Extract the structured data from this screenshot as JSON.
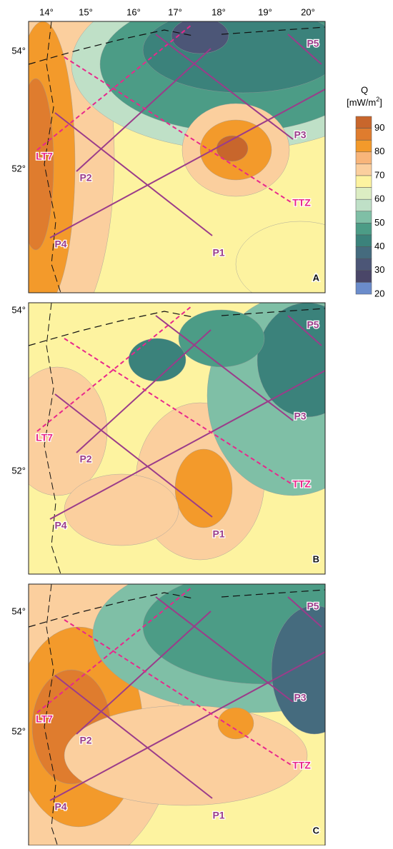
{
  "x_labels": [
    "14°",
    "15°",
    "16°",
    "17°",
    "18°",
    "19°",
    "20°"
  ],
  "panels": [
    {
      "letter": "A",
      "y_labels": [
        "54°",
        "52°"
      ],
      "profiles": [
        "LT7",
        "P2",
        "P4",
        "P1",
        "TTZ",
        "P3",
        "P5"
      ]
    },
    {
      "letter": "B",
      "y_labels": [
        "54°",
        "52°"
      ],
      "profiles": [
        "LT7",
        "P2",
        "P4",
        "P1",
        "TTZ",
        "P3",
        "P5"
      ]
    },
    {
      "letter": "C",
      "y_labels": [
        "54°",
        "52°"
      ],
      "profiles": [
        "LT7",
        "P2",
        "P4",
        "P1",
        "TTZ",
        "P3",
        "P5"
      ]
    }
  ],
  "legend": {
    "title": "Q",
    "unit": "[mW/m",
    "unit_power": "2",
    "unit_close": "]",
    "labels": [
      "90",
      "80",
      "70",
      "60",
      "50",
      "40",
      "30",
      "20"
    ],
    "colors": [
      "#c8662c",
      "#df7c2e",
      "#f39a2b",
      "#f8b57a",
      "#fbcf9e",
      "#fdf3a0",
      "#dcedc3",
      "#bfe0c7",
      "#7fbfa6",
      "#4c9c86",
      "#3b827b",
      "#456b7e",
      "#4c5677",
      "#4a4668",
      "#6b8ccb"
    ]
  }
}
